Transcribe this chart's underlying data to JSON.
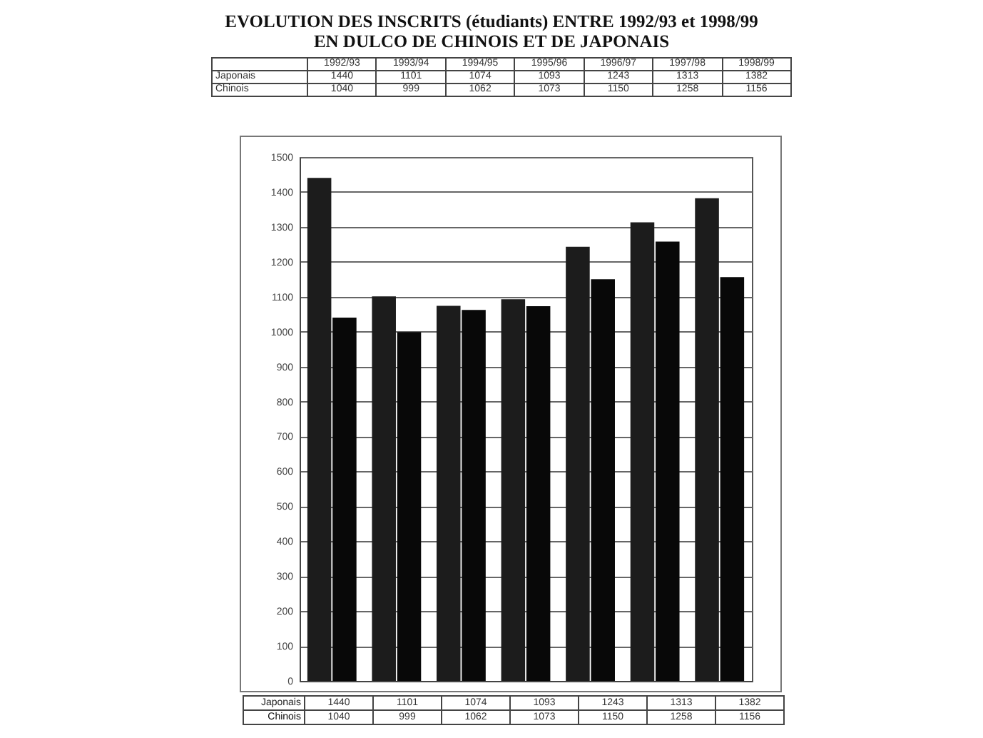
{
  "chart_data": [
    {
      "type": "other",
      "title": "EVOLUTION DES INSCRITS (étudiants) ENTRE 1992/93 et 1998/99",
      "subtitle": "EN DULCO DE CHINOIS ET DE JAPONAIS",
      "categories": [
        "1992/93",
        "1993/94",
        "1994/95",
        "1995/96",
        "1996/97",
        "1997/98",
        "1998/99"
      ],
      "series": [
        {
          "name": "Japonais",
          "values": [
            1440,
            1101,
            1074,
            1093,
            1243,
            1313,
            1382
          ]
        },
        {
          "name": "Chinois",
          "values": [
            1040,
            999,
            1062,
            1073,
            1150,
            1258,
            1156
          ]
        }
      ],
      "data_labels": true
    },
    {
      "type": "bar",
      "categories": [
        null,
        null,
        null,
        null,
        null,
        null,
        null
      ],
      "series": [
        {
          "name": "Japonais",
          "color": "#1c1c1c",
          "values": [
            1440,
            1101,
            1074,
            1093,
            1243,
            1313,
            1382
          ]
        },
        {
          "name": "Chinois",
          "color": "#080808",
          "values": [
            1040,
            999,
            1062,
            1073,
            1150,
            1258,
            1156
          ]
        }
      ],
      "ylim": [
        0,
        1500
      ],
      "yticks": [
        0,
        100,
        200,
        300,
        400,
        500,
        600,
        700,
        800,
        900,
        1000,
        1100,
        1200,
        1300,
        1400,
        1500
      ],
      "grid": "y",
      "data_labels": true,
      "tick_labels": "y"
    }
  ]
}
